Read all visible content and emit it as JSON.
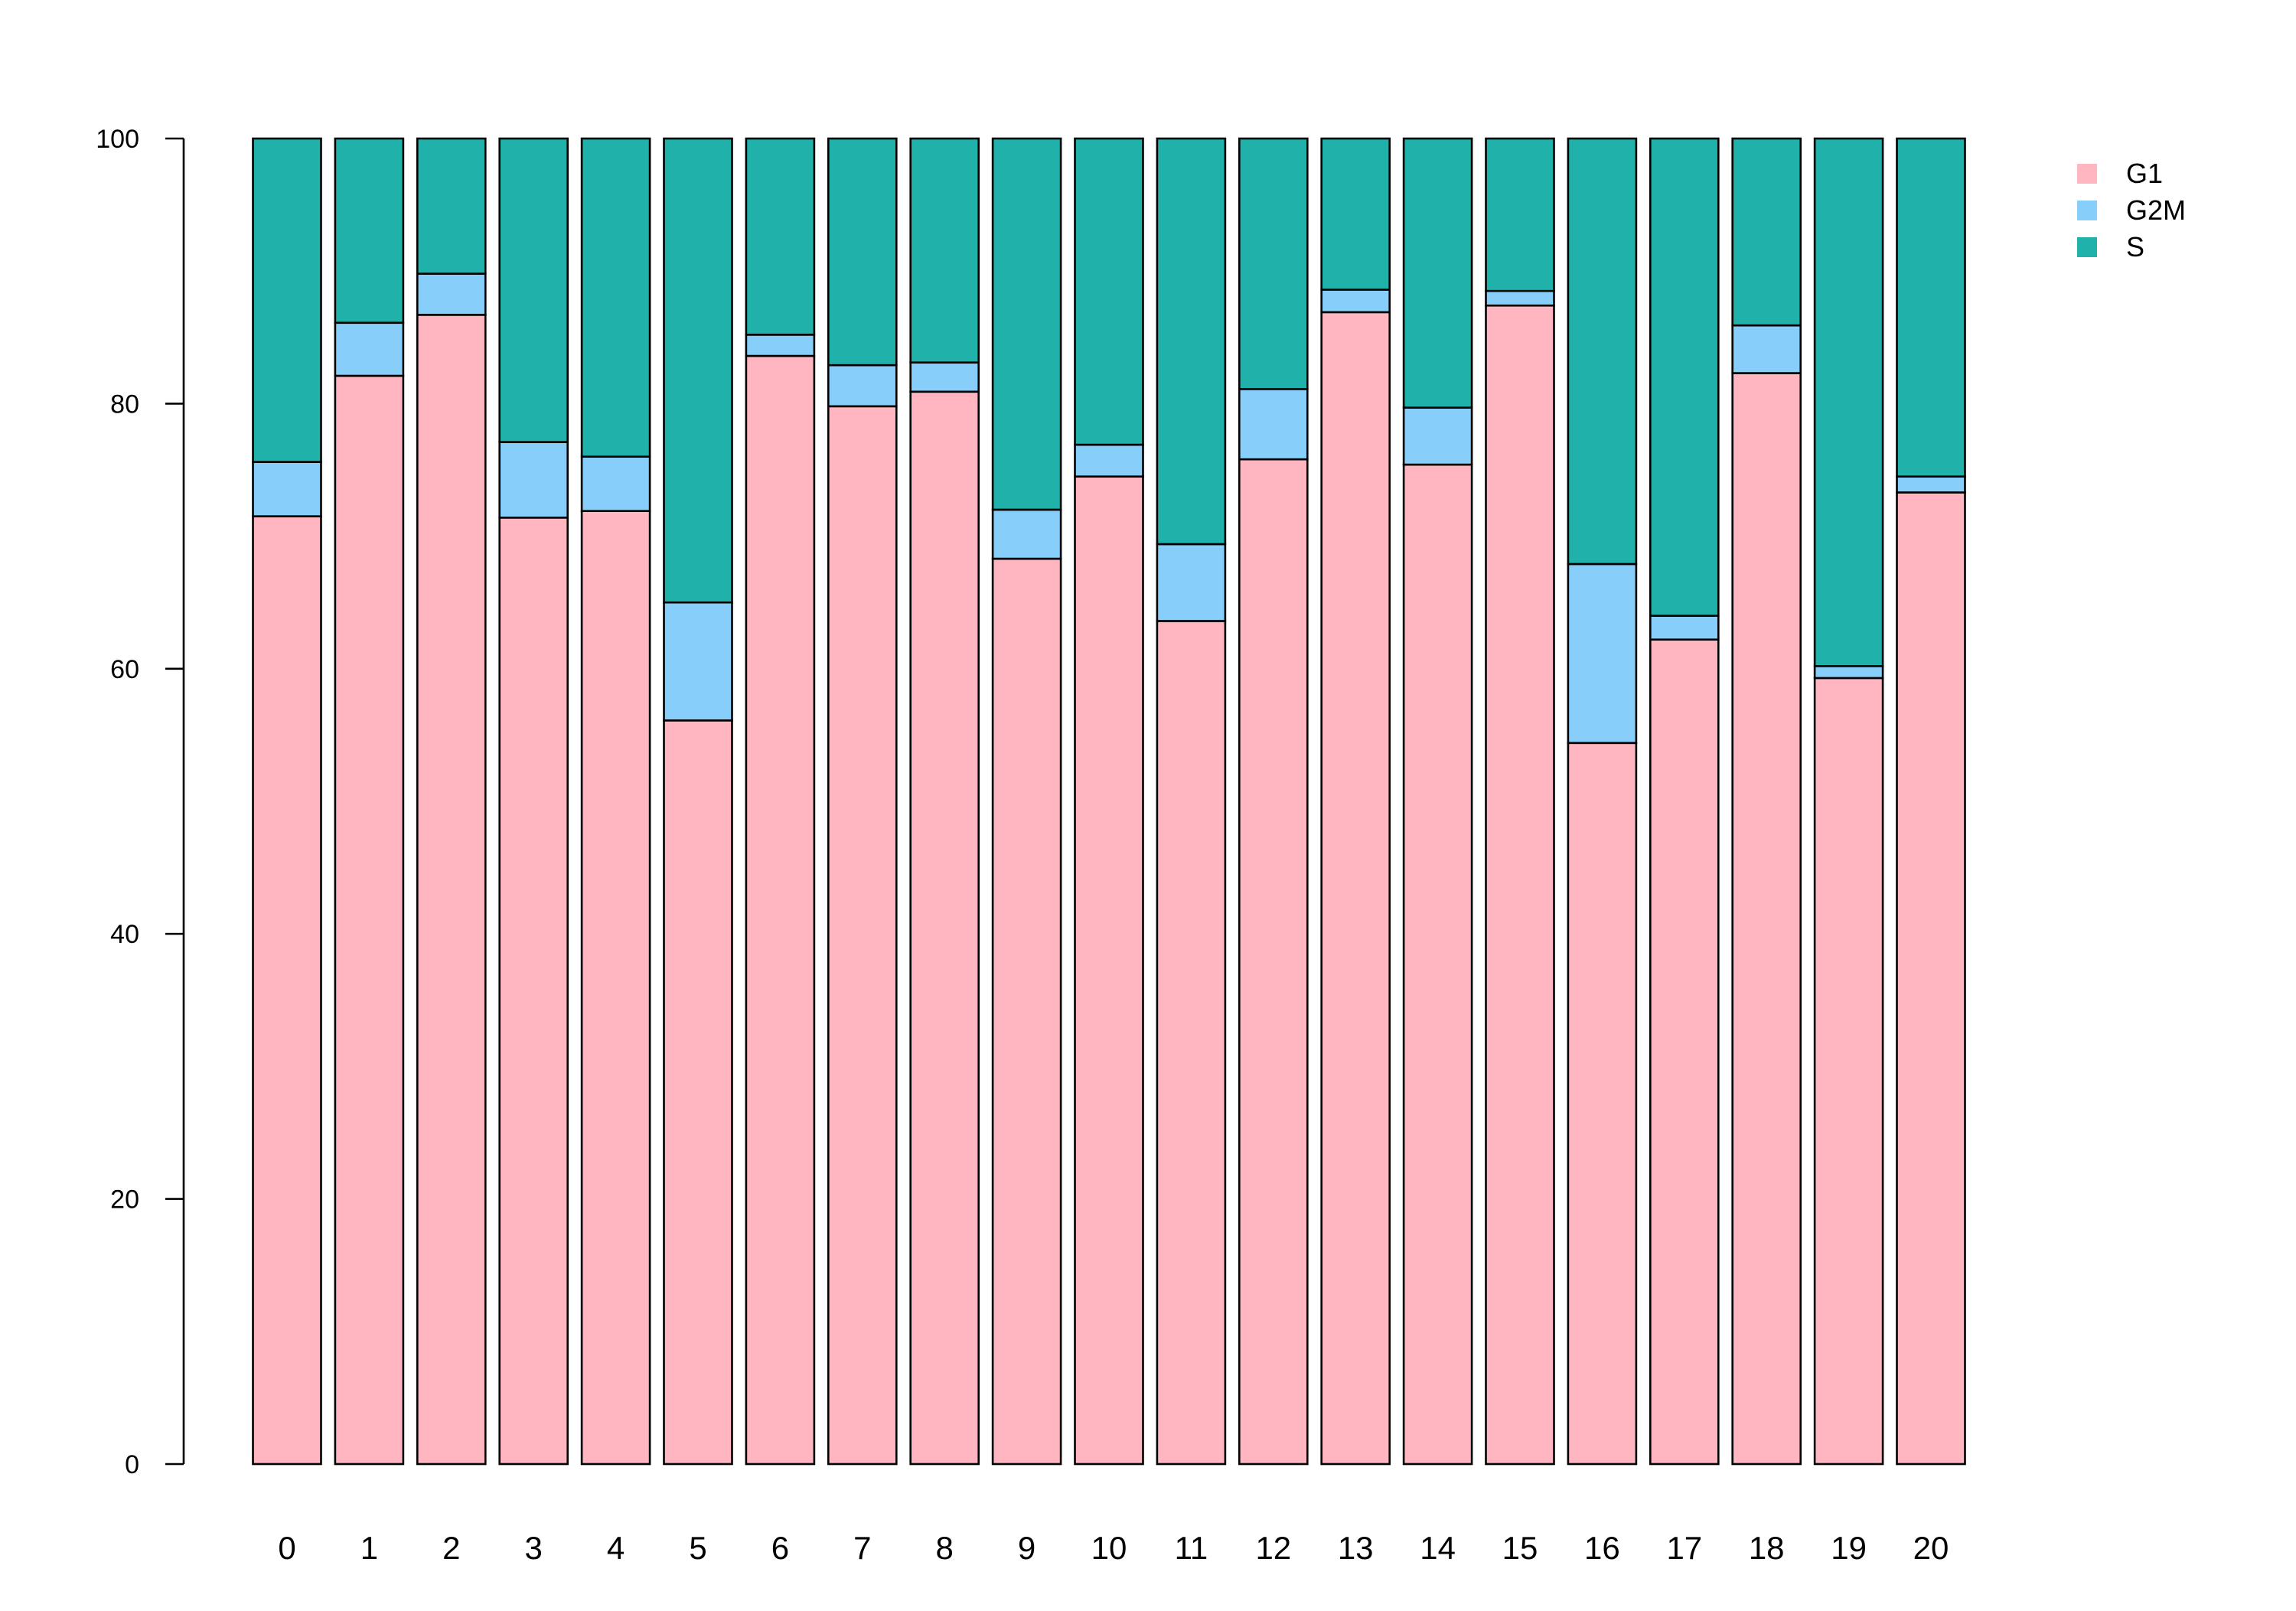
{
  "chart_data": {
    "type": "bar",
    "stacked": true,
    "title": "",
    "xlabel": "",
    "ylabel": "",
    "ylim": [
      0,
      100
    ],
    "y_ticks": [
      0,
      20,
      40,
      60,
      80,
      100
    ],
    "grid": false,
    "legend_position": "top-right",
    "categories": [
      "0",
      "1",
      "2",
      "3",
      "4",
      "5",
      "6",
      "7",
      "8",
      "9",
      "10",
      "11",
      "12",
      "13",
      "14",
      "15",
      "16",
      "17",
      "18",
      "19",
      "20"
    ],
    "series": [
      {
        "name": "G1",
        "color": "#FFB6C1",
        "values": [
          71.5,
          82.1,
          86.7,
          71.4,
          71.9,
          56.1,
          83.6,
          79.8,
          80.9,
          68.3,
          74.5,
          63.6,
          75.8,
          86.9,
          75.4,
          87.4,
          54.4,
          62.2,
          82.3,
          59.3,
          73.3
        ]
      },
      {
        "name": "G2M",
        "color": "#87CEFA",
        "values": [
          4.1,
          4.0,
          3.1,
          5.7,
          4.1,
          8.9,
          1.6,
          3.1,
          2.2,
          3.7,
          2.4,
          5.8,
          5.3,
          1.7,
          4.3,
          1.1,
          13.5,
          1.8,
          3.6,
          0.9,
          1.2
        ]
      },
      {
        "name": "S",
        "color": "#20B2AA",
        "values": [
          24.4,
          13.9,
          10.2,
          22.9,
          24.0,
          35.0,
          14.8,
          17.1,
          16.9,
          28.0,
          23.1,
          30.6,
          18.9,
          11.4,
          20.3,
          11.5,
          32.1,
          36.0,
          14.1,
          39.8,
          25.5
        ]
      }
    ]
  }
}
